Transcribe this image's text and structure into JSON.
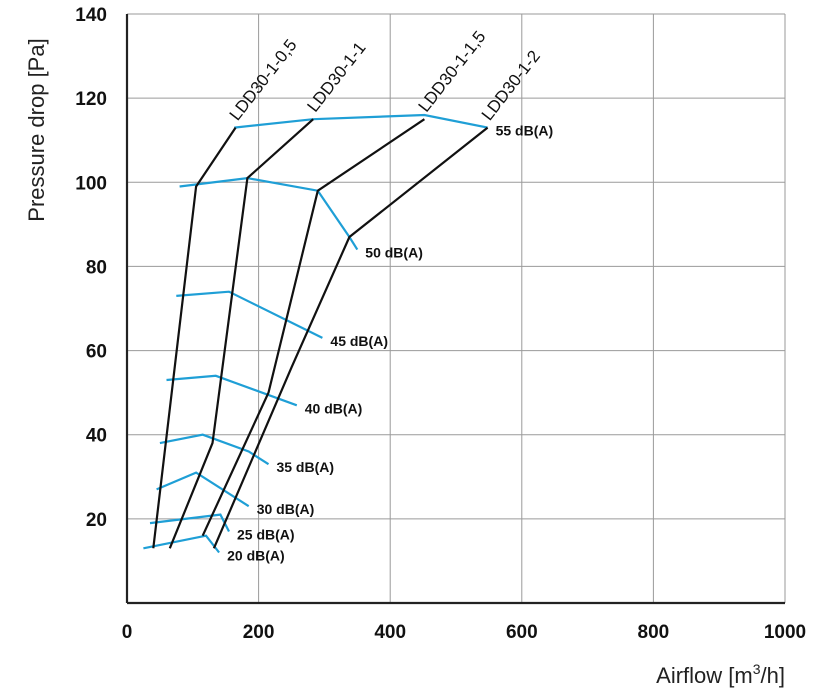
{
  "chart_data": {
    "type": "line",
    "xlabel_main": "Airflow [m",
    "xlabel_sup": "3",
    "xlabel_end": "/h]",
    "ylabel": "Pressure drop [Pa]",
    "xlim": [
      0,
      1000
    ],
    "ylim": [
      0,
      140
    ],
    "x_ticks": [
      "0",
      "200",
      "400",
      "600",
      "800",
      "1000"
    ],
    "y_ticks": [
      "20",
      "40",
      "60",
      "80",
      "100",
      "120",
      "140"
    ],
    "grid": true,
    "series": [
      {
        "name": "LDD30-1-0,5",
        "points": [
          [
            40,
            13
          ],
          [
            105,
            99
          ],
          [
            165,
            113
          ]
        ]
      },
      {
        "name": "LDD30-1-1",
        "points": [
          [
            65,
            13
          ],
          [
            130,
            38
          ],
          [
            183,
            101
          ],
          [
            283,
            115
          ]
        ]
      },
      {
        "name": "LDD30-1-1,5",
        "points": [
          [
            115,
            16
          ],
          [
            215,
            50
          ],
          [
            290,
            98
          ],
          [
            452,
            115
          ]
        ]
      },
      {
        "name": "LDD30-1-2",
        "points": [
          [
            132,
            13
          ],
          [
            250,
            56
          ],
          [
            338,
            87
          ],
          [
            548,
            113
          ]
        ]
      }
    ],
    "sound_levels": [
      {
        "name": "20 dB(A)",
        "points": [
          [
            25,
            13
          ],
          [
            120,
            16
          ],
          [
            140,
            12
          ]
        ]
      },
      {
        "name": "25 dB(A)",
        "points": [
          [
            35,
            19
          ],
          [
            142,
            21
          ],
          [
            155,
            17
          ]
        ]
      },
      {
        "name": "30 dB(A)",
        "points": [
          [
            45,
            27
          ],
          [
            105,
            31
          ],
          [
            185,
            23
          ]
        ]
      },
      {
        "name": "35 dB(A)",
        "points": [
          [
            50,
            38
          ],
          [
            115,
            40
          ],
          [
            185,
            36
          ],
          [
            215,
            33
          ]
        ]
      },
      {
        "name": "40 dB(A)",
        "points": [
          [
            60,
            53
          ],
          [
            135,
            54
          ],
          [
            258,
            47
          ]
        ]
      },
      {
        "name": "45 dB(A)",
        "points": [
          [
            75,
            73
          ],
          [
            155,
            74
          ],
          [
            297,
            63
          ]
        ]
      },
      {
        "name": "50 dB(A)",
        "points": [
          [
            80,
            99
          ],
          [
            183,
            101
          ],
          [
            290,
            98
          ],
          [
            338,
            87
          ],
          [
            350,
            84
          ]
        ]
      },
      {
        "name": "55 dB(A)",
        "points": [
          [
            163,
            113
          ],
          [
            283,
            115
          ],
          [
            452,
            116
          ],
          [
            548,
            113
          ]
        ]
      }
    ]
  }
}
